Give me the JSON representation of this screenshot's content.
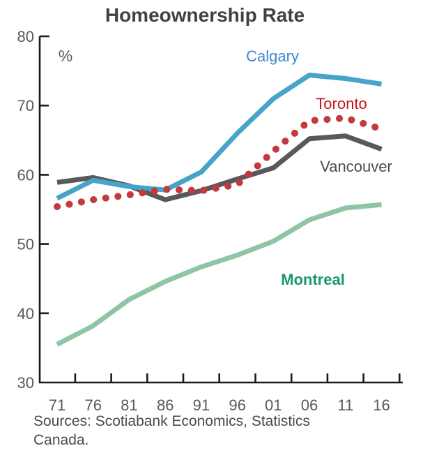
{
  "sources": {
    "line1": "Sources: Scotiabank Economics, Statistics",
    "line2": "Canada."
  },
  "colors": {
    "title_text": "#414042",
    "axis_line": "#1a1a1a",
    "tick_text": "#58595b",
    "source_text": "#4b4b4d"
  },
  "chart_data": {
    "type": "line",
    "title": "Homeownership Rate",
    "xlabel": "",
    "ylabel": "%",
    "ylim": [
      30,
      80
    ],
    "grid": false,
    "legend_position": "inline-labels",
    "yticks": [
      80,
      70,
      60,
      50,
      40,
      30
    ],
    "categories": [
      "71",
      "76",
      "81",
      "86",
      "91",
      "96",
      "01",
      "06",
      "11",
      "16"
    ],
    "series": [
      {
        "id": "vancouver",
        "name": "Vancouver",
        "style": "solid",
        "line_color": "#59595b",
        "label_color": "#4c4c4e",
        "values": [
          58.9,
          59.6,
          58.4,
          56.4,
          57.7,
          59.4,
          61.0,
          65.2,
          65.6,
          63.7
        ]
      },
      {
        "id": "calgary",
        "name": "Calgary",
        "style": "solid",
        "line_color": "#45a4c8",
        "label_color": "#3c87c9",
        "values": [
          56.6,
          59.2,
          58.3,
          57.8,
          60.4,
          66.0,
          71.0,
          74.4,
          73.9,
          73.1
        ]
      },
      {
        "id": "toronto",
        "name": "Toronto",
        "style": "dotted",
        "line_color": "#c23a3c",
        "label_color": "#c6151b",
        "values": [
          55.4,
          56.4,
          57.1,
          57.9,
          57.7,
          58.6,
          63.4,
          67.8,
          68.2,
          66.6
        ]
      },
      {
        "id": "montreal",
        "name": "Montreal",
        "style": "solid",
        "line_color": "#8fc5a5",
        "label_color": "#189a68",
        "values": [
          35.5,
          38.2,
          42.0,
          44.6,
          46.7,
          48.4,
          50.4,
          53.5,
          55.2,
          55.7
        ]
      }
    ]
  }
}
